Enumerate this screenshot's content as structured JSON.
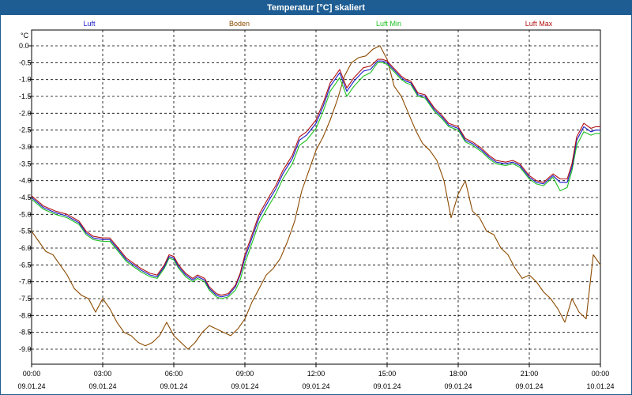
{
  "window": {
    "title": "Temperatur [°C] skaliert"
  },
  "chart_data": {
    "type": "line",
    "title": "Temperatur [°C] skaliert",
    "ylabel": "°C",
    "ylim": [
      -9.3,
      0.2
    ],
    "xlim": [
      0,
      24
    ],
    "yticks": [
      0.0,
      -0.5,
      -1.0,
      -1.5,
      -2.0,
      -2.5,
      -3.0,
      -3.5,
      -4.0,
      -4.5,
      -5.0,
      -5.5,
      -6.0,
      -6.5,
      -7.0,
      -7.5,
      -8.0,
      -8.5,
      -9.0
    ],
    "ytick_labels": [
      "0.0",
      "-0.5",
      "-1.0",
      "-1.5",
      "-2.0",
      "-2.5",
      "-3.0",
      "-3.5",
      "-4.0",
      "-4.5",
      "-5.0",
      "-5.5",
      "-6.0",
      "-6.5",
      "-7.0",
      "-7.5",
      "-8.0",
      "-8.5",
      "-9.0"
    ],
    "xticks": [
      {
        "h": 0,
        "time": "00:00",
        "date": "09.01.24"
      },
      {
        "h": 3,
        "time": "03:00",
        "date": "09.01.24"
      },
      {
        "h": 6,
        "time": "06:00",
        "date": "09.01.24"
      },
      {
        "h": 9,
        "time": "09:00",
        "date": "09.01.24"
      },
      {
        "h": 12,
        "time": "12:00",
        "date": "09.01.24"
      },
      {
        "h": 15,
        "time": "15:00",
        "date": "09.01.24"
      },
      {
        "h": 18,
        "time": "18:00",
        "date": "09.01.24"
      },
      {
        "h": 21,
        "time": "21:00",
        "date": "09.01.24"
      },
      {
        "h": 24,
        "time": "00:00",
        "date": "10.01.24"
      }
    ],
    "grid": true,
    "series": [
      {
        "name": "Luft",
        "color": "#1a1ac8",
        "x": [
          0,
          0.5,
          1,
          1.5,
          2,
          2.3,
          2.6,
          3,
          3.3,
          3.6,
          4,
          4.3,
          4.6,
          5,
          5.3,
          5.6,
          5.8,
          6,
          6.2,
          6.5,
          6.8,
          7,
          7.3,
          7.5,
          7.8,
          8,
          8.3,
          8.6,
          8.8,
          9,
          9.3,
          9.6,
          10,
          10.3,
          10.6,
          11,
          11.3,
          11.6,
          12,
          12.3,
          12.6,
          13,
          13.3,
          13.6,
          14,
          14.3,
          14.6,
          14.8,
          15,
          15.2,
          15.4,
          15.6,
          15.8,
          16,
          16.3,
          16.6,
          17,
          17.3,
          17.6,
          18,
          18.3,
          18.6,
          19,
          19.3,
          19.6,
          20,
          20.3,
          20.6,
          21,
          21.3,
          21.6,
          22,
          22.3,
          22.6,
          22.8,
          23,
          23.3,
          23.6,
          23.8,
          24
        ],
        "values": [
          -4.5,
          -4.8,
          -4.95,
          -5.05,
          -5.25,
          -5.55,
          -5.7,
          -5.75,
          -5.75,
          -6.0,
          -6.35,
          -6.5,
          -6.65,
          -6.8,
          -6.85,
          -6.55,
          -6.25,
          -6.3,
          -6.55,
          -6.8,
          -6.95,
          -6.85,
          -6.95,
          -7.2,
          -7.4,
          -7.45,
          -7.4,
          -7.15,
          -6.8,
          -6.3,
          -5.7,
          -5.1,
          -4.6,
          -4.25,
          -3.8,
          -3.35,
          -2.8,
          -2.65,
          -2.3,
          -1.8,
          -1.2,
          -0.8,
          -1.35,
          -1.05,
          -0.75,
          -0.7,
          -0.45,
          -0.45,
          -0.5,
          -0.65,
          -0.8,
          -0.95,
          -1.05,
          -1.1,
          -1.45,
          -1.5,
          -1.9,
          -2.1,
          -2.35,
          -2.45,
          -2.8,
          -2.9,
          -3.1,
          -3.3,
          -3.45,
          -3.5,
          -3.45,
          -3.55,
          -3.9,
          -4.05,
          -4.1,
          -3.85,
          -4.05,
          -4.05,
          -3.6,
          -2.8,
          -2.4,
          -2.55,
          -2.5,
          -2.5
        ]
      },
      {
        "name": "Boden",
        "color": "#8b4a00",
        "x": [
          0,
          0.3,
          0.6,
          0.9,
          1.2,
          1.5,
          1.8,
          2.1,
          2.4,
          2.7,
          3,
          3.3,
          3.6,
          3.9,
          4.2,
          4.5,
          4.8,
          5.1,
          5.4,
          5.7,
          6,
          6.3,
          6.6,
          6.9,
          7.2,
          7.5,
          7.8,
          8.1,
          8.4,
          8.7,
          9,
          9.3,
          9.6,
          9.9,
          10.2,
          10.5,
          10.8,
          11.1,
          11.4,
          11.7,
          12,
          12.3,
          12.6,
          12.9,
          13.2,
          13.5,
          13.8,
          14.1,
          14.4,
          14.7,
          15,
          15.3,
          15.6,
          15.9,
          16.2,
          16.5,
          16.8,
          17.1,
          17.4,
          17.7,
          18,
          18.3,
          18.6,
          18.9,
          19.2,
          19.5,
          19.8,
          20.1,
          20.4,
          20.7,
          21,
          21.3,
          21.6,
          21.9,
          22.2,
          22.5,
          22.8,
          23.1,
          23.4,
          23.7,
          24
        ],
        "values": [
          -5.5,
          -5.8,
          -6.1,
          -6.2,
          -6.5,
          -6.8,
          -7.2,
          -7.4,
          -7.5,
          -7.9,
          -7.5,
          -7.8,
          -8.2,
          -8.5,
          -8.6,
          -8.8,
          -8.9,
          -8.8,
          -8.6,
          -8.2,
          -8.6,
          -8.8,
          -9.0,
          -8.8,
          -8.5,
          -8.3,
          -8.4,
          -8.5,
          -8.6,
          -8.4,
          -8.1,
          -7.6,
          -7.2,
          -6.8,
          -6.6,
          -6.3,
          -5.8,
          -5.2,
          -4.3,
          -3.7,
          -3.1,
          -2.7,
          -2.2,
          -1.6,
          -0.9,
          -0.5,
          -0.35,
          -0.3,
          -0.1,
          0.0,
          -0.4,
          -1.2,
          -1.5,
          -2.0,
          -2.5,
          -2.9,
          -3.1,
          -3.4,
          -4.0,
          -5.1,
          -4.4,
          -4.0,
          -4.9,
          -5.1,
          -5.5,
          -5.6,
          -6.0,
          -6.2,
          -6.6,
          -6.9,
          -6.8,
          -7.0,
          -7.3,
          -7.5,
          -7.8,
          -8.2,
          -7.5,
          -7.9,
          -8.1,
          -6.2,
          -6.5
        ]
      },
      {
        "name": "Luft Min",
        "color": "#1fc01f",
        "x": [
          0,
          0.5,
          1,
          1.5,
          2,
          2.3,
          2.6,
          3,
          3.3,
          3.6,
          4,
          4.3,
          4.6,
          5,
          5.3,
          5.6,
          5.8,
          6,
          6.2,
          6.5,
          6.8,
          7,
          7.3,
          7.5,
          7.8,
          8,
          8.3,
          8.6,
          8.8,
          9,
          9.3,
          9.6,
          10,
          10.3,
          10.6,
          11,
          11.3,
          11.6,
          12,
          12.3,
          12.6,
          13,
          13.3,
          13.6,
          14,
          14.3,
          14.6,
          14.8,
          15,
          15.2,
          15.4,
          15.6,
          15.8,
          16,
          16.3,
          16.6,
          17,
          17.3,
          17.6,
          18,
          18.3,
          18.6,
          19,
          19.3,
          19.6,
          20,
          20.3,
          20.6,
          21,
          21.3,
          21.6,
          22,
          22.3,
          22.6,
          22.8,
          23,
          23.3,
          23.6,
          23.8,
          24
        ],
        "values": [
          -4.55,
          -4.85,
          -5.0,
          -5.1,
          -5.3,
          -5.6,
          -5.75,
          -5.8,
          -5.8,
          -6.05,
          -6.4,
          -6.55,
          -6.7,
          -6.85,
          -6.9,
          -6.6,
          -6.3,
          -6.35,
          -6.6,
          -6.85,
          -7.0,
          -6.9,
          -7.0,
          -7.25,
          -7.45,
          -7.5,
          -7.45,
          -7.25,
          -6.95,
          -6.45,
          -5.85,
          -5.25,
          -4.75,
          -4.4,
          -3.95,
          -3.5,
          -2.95,
          -2.8,
          -2.45,
          -1.95,
          -1.35,
          -0.95,
          -1.5,
          -1.2,
          -0.9,
          -0.8,
          -0.5,
          -0.5,
          -0.55,
          -0.7,
          -0.85,
          -1.0,
          -1.1,
          -1.15,
          -1.5,
          -1.55,
          -1.95,
          -2.15,
          -2.4,
          -2.5,
          -2.85,
          -2.95,
          -3.15,
          -3.35,
          -3.5,
          -3.55,
          -3.5,
          -3.6,
          -3.95,
          -4.1,
          -4.15,
          -3.9,
          -4.3,
          -4.2,
          -3.7,
          -2.95,
          -2.55,
          -2.65,
          -2.6,
          -2.6
        ]
      },
      {
        "name": "Luft Max",
        "color": "#b01010",
        "x": [
          0,
          0.5,
          1,
          1.5,
          2,
          2.3,
          2.6,
          3,
          3.3,
          3.6,
          4,
          4.3,
          4.6,
          5,
          5.3,
          5.6,
          5.8,
          6,
          6.2,
          6.5,
          6.8,
          7,
          7.3,
          7.5,
          7.8,
          8,
          8.3,
          8.6,
          8.8,
          9,
          9.3,
          9.6,
          10,
          10.3,
          10.6,
          11,
          11.3,
          11.6,
          12,
          12.3,
          12.6,
          13,
          13.3,
          13.6,
          14,
          14.3,
          14.6,
          14.8,
          15,
          15.2,
          15.4,
          15.6,
          15.8,
          16,
          16.3,
          16.6,
          17,
          17.3,
          17.6,
          18,
          18.3,
          18.6,
          19,
          19.3,
          19.6,
          20,
          20.3,
          20.6,
          21,
          21.3,
          21.6,
          22,
          22.3,
          22.6,
          22.8,
          23,
          23.3,
          23.6,
          23.8,
          24
        ],
        "values": [
          -4.45,
          -4.75,
          -4.9,
          -5.0,
          -5.2,
          -5.5,
          -5.65,
          -5.7,
          -5.7,
          -5.95,
          -6.3,
          -6.45,
          -6.6,
          -6.75,
          -6.8,
          -6.5,
          -6.2,
          -6.25,
          -6.5,
          -6.75,
          -6.9,
          -6.8,
          -6.9,
          -7.15,
          -7.35,
          -7.4,
          -7.35,
          -7.1,
          -6.75,
          -6.2,
          -5.6,
          -5.0,
          -4.5,
          -4.15,
          -3.7,
          -3.25,
          -2.7,
          -2.55,
          -2.2,
          -1.7,
          -1.1,
          -0.7,
          -1.25,
          -0.95,
          -0.65,
          -0.6,
          -0.4,
          -0.4,
          -0.45,
          -0.6,
          -0.75,
          -0.9,
          -1.0,
          -1.05,
          -1.4,
          -1.45,
          -1.85,
          -2.05,
          -2.3,
          -2.4,
          -2.75,
          -2.85,
          -3.05,
          -3.25,
          -3.4,
          -3.45,
          -3.4,
          -3.5,
          -3.85,
          -4.0,
          -4.05,
          -3.8,
          -3.95,
          -3.95,
          -3.5,
          -2.7,
          -2.3,
          -2.45,
          -2.4,
          -2.4
        ]
      }
    ]
  }
}
